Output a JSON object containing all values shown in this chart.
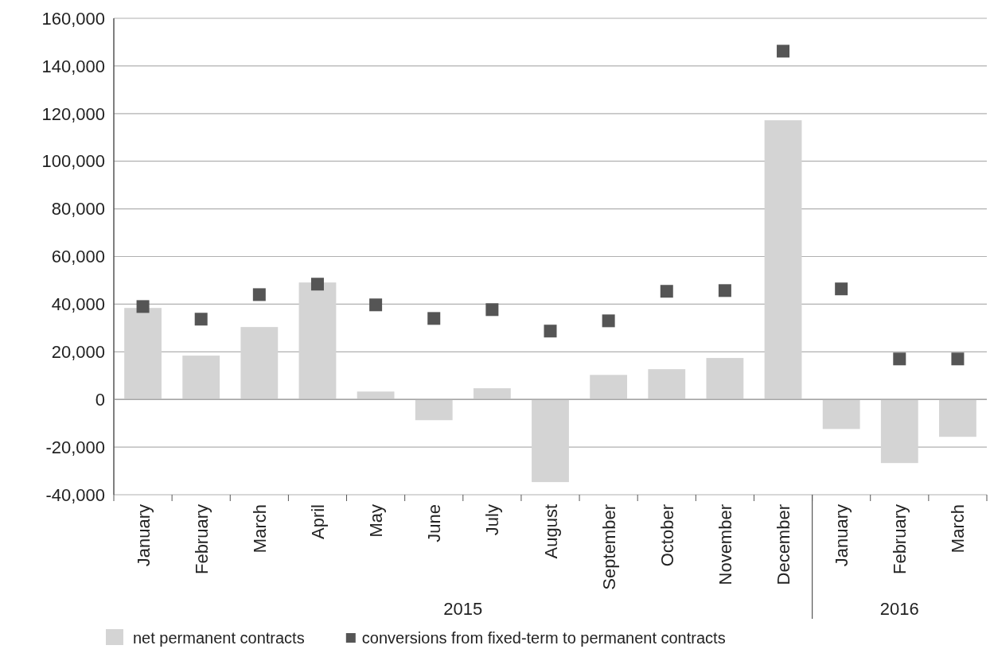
{
  "chart_data": {
    "type": "bar",
    "categories": [
      "January",
      "February",
      "March",
      "April",
      "May",
      "June",
      "July",
      "August",
      "September",
      "October",
      "November",
      "December",
      "January",
      "February",
      "March"
    ],
    "series": [
      {
        "name": "net permanent contracts",
        "color": "#d4d4d4",
        "values": [
          38400,
          18400,
          30400,
          49100,
          3300,
          -8700,
          4700,
          -34700,
          10300,
          12700,
          17400,
          117200,
          -12400,
          -26700,
          -15700
        ]
      },
      {
        "name": "conversions from fixed-term to permanent contracts",
        "type": "scatter",
        "color": "#555555",
        "marker": "square",
        "values": [
          39000,
          33700,
          44000,
          48400,
          39700,
          34000,
          37700,
          28700,
          33000,
          45400,
          45700,
          146200,
          46400,
          17000,
          17000
        ]
      }
    ],
    "ylim": [
      -40000,
      160000
    ],
    "yticks": [
      {
        "value": -40000,
        "label": "-40,000"
      },
      {
        "value": -20000,
        "label": "-20,000"
      },
      0,
      {
        "value": 20000,
        "label": "20,000"
      },
      {
        "value": 40000,
        "label": "40,000"
      },
      {
        "value": 60000,
        "label": "60,000"
      },
      {
        "value": 80000,
        "label": "80,000"
      },
      {
        "value": 100000,
        "label": "100,000"
      },
      {
        "value": 120000,
        "label": "120,000"
      },
      {
        "value": 140000,
        "label": "140,000"
      },
      {
        "value": 160000,
        "label": "160,000"
      }
    ],
    "grid": "y",
    "legend": "bottom",
    "annotations": [
      "2015",
      "2016"
    ]
  }
}
